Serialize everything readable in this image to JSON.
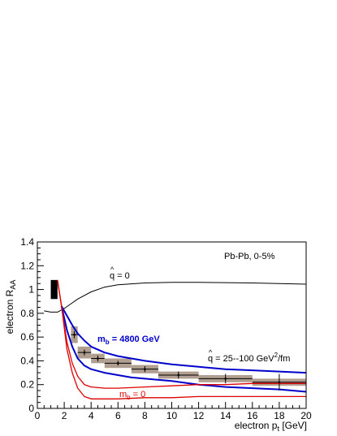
{
  "chart_data": {
    "type": "line",
    "xlabel": "electron p",
    "xlabel_sub": "t",
    "xlabel_unit": " [GeV]",
    "ylabel": "electron R",
    "ylabel_sub": "AA",
    "xlim": [
      0,
      20
    ],
    "ylim": [
      0,
      1.4
    ],
    "xticks": [
      0,
      2,
      4,
      6,
      8,
      10,
      12,
      14,
      16,
      18,
      20
    ],
    "yticks": [
      0,
      0.2,
      0.4,
      0.6,
      0.8,
      1,
      1.2,
      1.4
    ],
    "xtick_labels": [
      "0",
      "2",
      "4",
      "6",
      "8",
      "10",
      "12",
      "14",
      "16",
      "18",
      "20"
    ],
    "ytick_labels": [
      "0",
      "0.2",
      "0.4",
      "0.6",
      "0.8",
      "1",
      "1.2",
      "1.4"
    ],
    "grid": false,
    "annotations": {
      "system": "Pb-Pb, 0-5%",
      "qhat_zero": "q = 0",
      "mb_heavy": "m",
      "mb_heavy_sub": "b",
      "mb_heavy_value": " = 4800 GeV",
      "qhat_range": "q = 25--100 GeV",
      "qhat_range_sup": "2",
      "qhat_range_unit": "/fm",
      "mb_zero": "m",
      "mb_zero_sub": "b",
      "mb_zero_value": " = 0"
    },
    "normalization_box": {
      "x_range": [
        1.0,
        1.5
      ],
      "y_range": [
        0.92,
        1.08
      ],
      "color": "#000000"
    },
    "data_points": [
      {
        "x": 2.75,
        "xerr": 0.25,
        "y": 0.62,
        "stat_err": 0.03,
        "sys": 0.07
      },
      {
        "x": 3.5,
        "xerr": 0.5,
        "y": 0.47,
        "stat_err": 0.025,
        "sys": 0.05
      },
      {
        "x": 4.5,
        "xerr": 0.5,
        "y": 0.42,
        "stat_err": 0.025,
        "sys": 0.04
      },
      {
        "x": 6.0,
        "xerr": 1.0,
        "y": 0.38,
        "stat_err": 0.02,
        "sys": 0.04
      },
      {
        "x": 8.0,
        "xerr": 1.0,
        "y": 0.33,
        "stat_err": 0.025,
        "sys": 0.035
      },
      {
        "x": 10.5,
        "xerr": 1.5,
        "y": 0.28,
        "stat_err": 0.03,
        "sys": 0.03
      },
      {
        "x": 14.0,
        "xerr": 2.0,
        "y": 0.25,
        "stat_err": 0.04,
        "sys": 0.03
      },
      {
        "x": 18.0,
        "xerr": 2.0,
        "y": 0.22,
        "stat_err": 0.07,
        "sys": 0.03
      }
    ],
    "series": [
      {
        "color": "#000000",
        "width": 1,
        "x": [
          0.5,
          1,
          1.5,
          2,
          2.5,
          3,
          4,
          5,
          6,
          8,
          10,
          12,
          14,
          16,
          18,
          20
        ],
        "y": [
          0.82,
          0.81,
          0.81,
          0.84,
          0.88,
          0.92,
          0.98,
          1.02,
          1.04,
          1.055,
          1.06,
          1.06,
          1.058,
          1.055,
          1.05,
          1.045
        ]
      },
      {
        "color": "#0000cc",
        "width": 2,
        "x": [
          1.8,
          2.2,
          2.6,
          3,
          3.5,
          4,
          5,
          6,
          7,
          8,
          10,
          12,
          14,
          16,
          18,
          20
        ],
        "y": [
          0.86,
          0.78,
          0.7,
          0.63,
          0.57,
          0.52,
          0.47,
          0.44,
          0.42,
          0.4,
          0.37,
          0.35,
          0.33,
          0.32,
          0.31,
          0.3
        ]
      },
      {
        "color": "#0000cc",
        "width": 2,
        "x": [
          1.8,
          2.2,
          2.6,
          3,
          3.5,
          4,
          5,
          6,
          7,
          8,
          10,
          12,
          14,
          16,
          18,
          20
        ],
        "y": [
          0.86,
          0.66,
          0.52,
          0.42,
          0.36,
          0.33,
          0.3,
          0.28,
          0.26,
          0.25,
          0.23,
          0.2,
          0.18,
          0.17,
          0.16,
          0.14
        ]
      },
      {
        "color": "#dd0000",
        "width": 1.3,
        "x": [
          1.5,
          1.8,
          2.2,
          2.6,
          3,
          3.5,
          4,
          5,
          6,
          8,
          10,
          12,
          14,
          16,
          18,
          20
        ],
        "y": [
          1.08,
          0.86,
          0.56,
          0.38,
          0.27,
          0.2,
          0.18,
          0.17,
          0.17,
          0.18,
          0.19,
          0.2,
          0.2,
          0.21,
          0.21,
          0.21
        ]
      },
      {
        "color": "#dd0000",
        "width": 1.3,
        "x": [
          1.5,
          1.8,
          2.2,
          2.6,
          3,
          3.5,
          4,
          5,
          6,
          8,
          10,
          12,
          14,
          16,
          18,
          20
        ],
        "y": [
          1.08,
          0.86,
          0.5,
          0.3,
          0.17,
          0.1,
          0.08,
          0.08,
          0.08,
          0.09,
          0.09,
          0.1,
          0.1,
          0.1,
          0.1,
          0.1
        ]
      }
    ]
  }
}
